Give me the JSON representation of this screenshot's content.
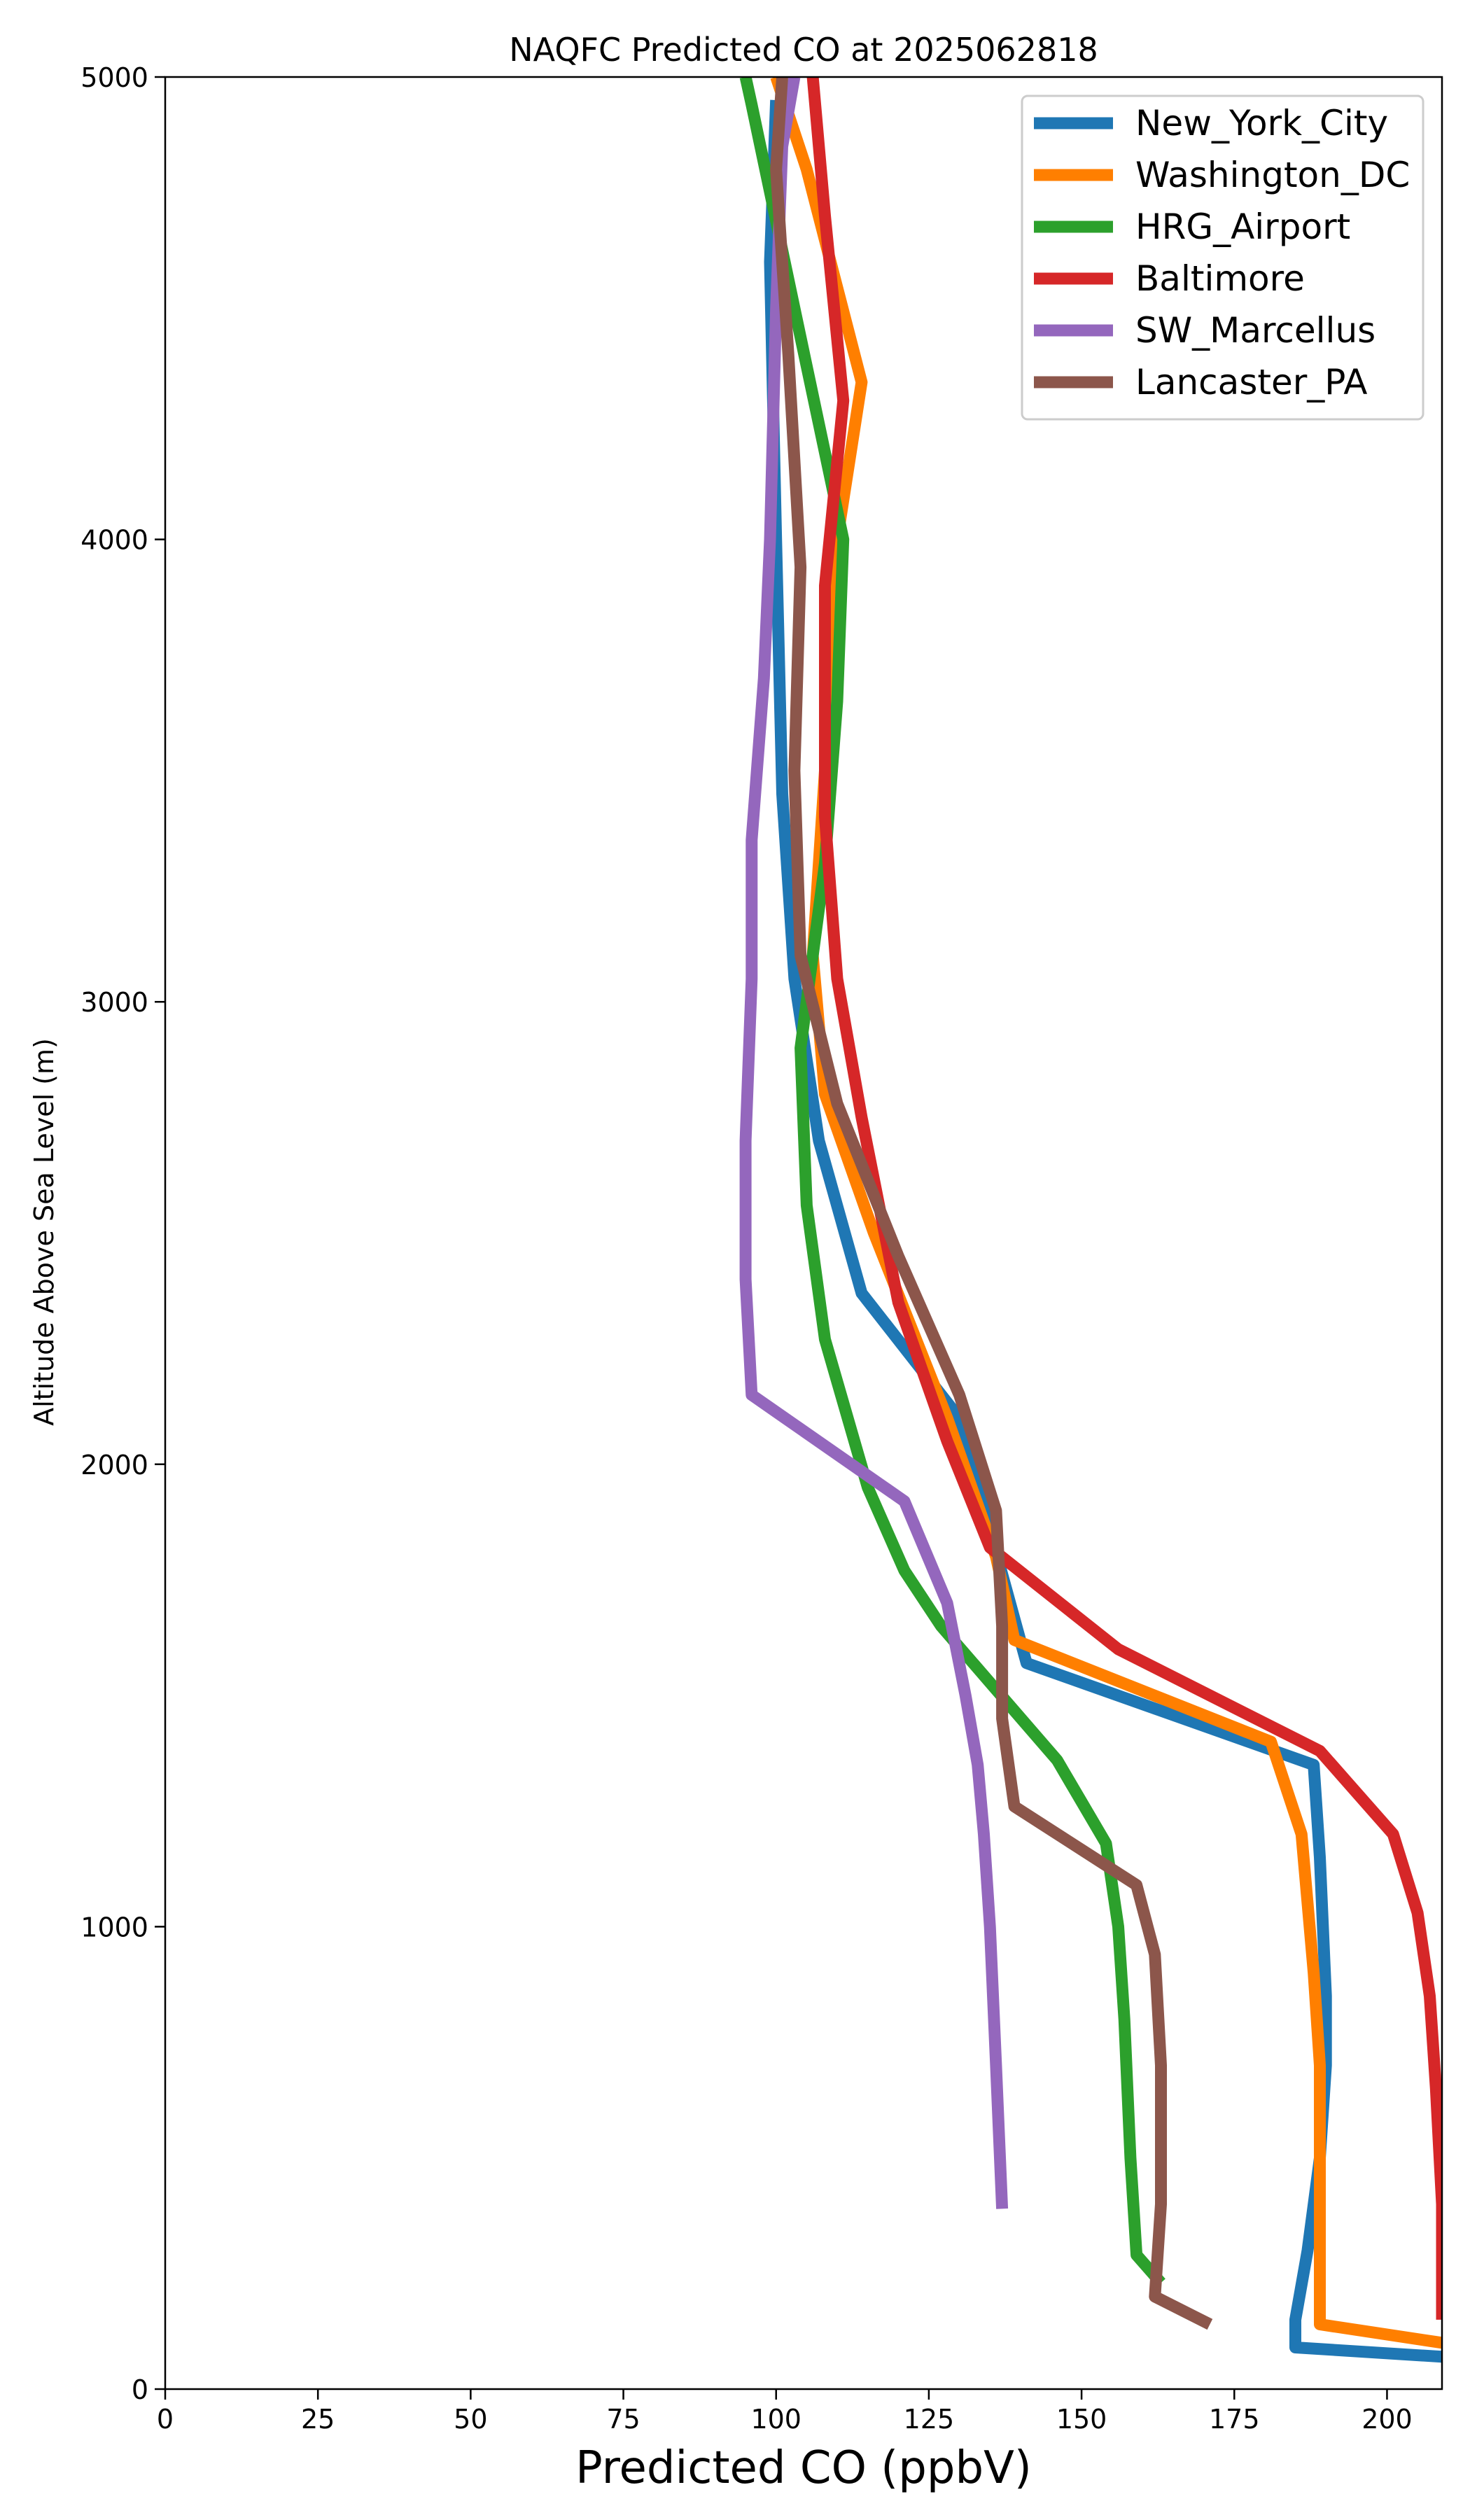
{
  "chart_data": {
    "type": "line",
    "title": "NAQFC Predicted CO at 2025062818",
    "xlabel": "Predicted CO (ppbV)",
    "ylabel": "Altitude Above Sea Level (m)",
    "xlim": [
      0,
      209
    ],
    "ylim": [
      0,
      5000
    ],
    "xticks": [
      "0",
      "25",
      "50",
      "75",
      "100",
      "125",
      "150",
      "175",
      "200"
    ],
    "yticks": [
      "0",
      "1000",
      "2000",
      "3000",
      "4000",
      "5000"
    ],
    "grid": false,
    "legend_position": "upper right",
    "series": [
      {
        "name": "New_York_City",
        "color": "#1f77b4",
        "points": [
          [
            209,
            70
          ],
          [
            185,
            90
          ],
          [
            185,
            150
          ],
          [
            187,
            300
          ],
          [
            189,
            500
          ],
          [
            190,
            700
          ],
          [
            190,
            850
          ],
          [
            189,
            1150
          ],
          [
            188,
            1350
          ],
          [
            141,
            1570
          ],
          [
            130,
            2100
          ],
          [
            114,
            2370
          ],
          [
            107,
            2700
          ],
          [
            103,
            3050
          ],
          [
            101,
            3450
          ],
          [
            100,
            4000
          ],
          [
            99,
            4600
          ],
          [
            100,
            4950
          ]
        ]
      },
      {
        "name": "Washington_DC",
        "color": "#ff7f00",
        "points": [
          [
            209,
            100
          ],
          [
            189,
            140
          ],
          [
            189,
            300
          ],
          [
            189,
            700
          ],
          [
            188,
            900
          ],
          [
            186,
            1200
          ],
          [
            181,
            1400
          ],
          [
            139,
            1620
          ],
          [
            136,
            1800
          ],
          [
            128,
            2100
          ],
          [
            116,
            2500
          ],
          [
            108,
            2800
          ],
          [
            106,
            3100
          ],
          [
            108,
            3500
          ],
          [
            110,
            4000
          ],
          [
            114,
            4340
          ],
          [
            105,
            4800
          ],
          [
            100,
            5000
          ]
        ]
      },
      {
        "name": "HRG_Airport",
        "color": "#2ca02c",
        "points": [
          [
            163,
            230
          ],
          [
            159,
            290
          ],
          [
            158,
            500
          ],
          [
            157,
            800
          ],
          [
            156,
            1000
          ],
          [
            154,
            1180
          ],
          [
            146,
            1360
          ],
          [
            127,
            1650
          ],
          [
            121,
            1770
          ],
          [
            115,
            1950
          ],
          [
            108,
            2270
          ],
          [
            105,
            2560
          ],
          [
            104,
            2900
          ],
          [
            108,
            3300
          ],
          [
            110,
            3650
          ],
          [
            111,
            4000
          ],
          [
            103,
            4500
          ],
          [
            96,
            4940
          ],
          [
            95,
            5000
          ]
        ]
      },
      {
        "name": "Baltimore",
        "color": "#d62728",
        "points": [
          [
            209,
            150
          ],
          [
            209,
            400
          ],
          [
            208,
            650
          ],
          [
            207,
            850
          ],
          [
            205,
            1030
          ],
          [
            201,
            1200
          ],
          [
            189,
            1380
          ],
          [
            156,
            1600
          ],
          [
            135,
            1820
          ],
          [
            128,
            2050
          ],
          [
            120,
            2350
          ],
          [
            114,
            2750
          ],
          [
            110,
            3050
          ],
          [
            108,
            3400
          ],
          [
            108,
            3900
          ],
          [
            111,
            4300
          ],
          [
            108,
            4700
          ],
          [
            106,
            5000
          ]
        ]
      },
      {
        "name": "SW_Marcellus",
        "color": "#9467bd",
        "points": [
          [
            137,
            390
          ],
          [
            136,
            700
          ],
          [
            135,
            1000
          ],
          [
            134,
            1200
          ],
          [
            133,
            1350
          ],
          [
            131,
            1500
          ],
          [
            128,
            1700
          ],
          [
            121,
            1920
          ],
          [
            96,
            2150
          ],
          [
            95,
            2400
          ],
          [
            95,
            2700
          ],
          [
            96,
            3050
          ],
          [
            96,
            3350
          ],
          [
            98,
            3700
          ],
          [
            99,
            4000
          ],
          [
            100,
            4500
          ],
          [
            101,
            4850
          ],
          [
            103,
            5000
          ]
        ]
      },
      {
        "name": "Lancaster_PA",
        "color": "#8c564b",
        "points": [
          [
            171,
            140
          ],
          [
            162,
            200
          ],
          [
            163,
            400
          ],
          [
            163,
            700
          ],
          [
            162,
            940
          ],
          [
            159,
            1090
          ],
          [
            139,
            1260
          ],
          [
            137,
            1450
          ],
          [
            137,
            1650
          ],
          [
            136,
            1900
          ],
          [
            130,
            2150
          ],
          [
            120,
            2450
          ],
          [
            110,
            2780
          ],
          [
            104,
            3100
          ],
          [
            103,
            3500
          ],
          [
            104,
            3940
          ],
          [
            102,
            4400
          ],
          [
            100,
            4800
          ],
          [
            101,
            5000
          ]
        ]
      }
    ]
  }
}
